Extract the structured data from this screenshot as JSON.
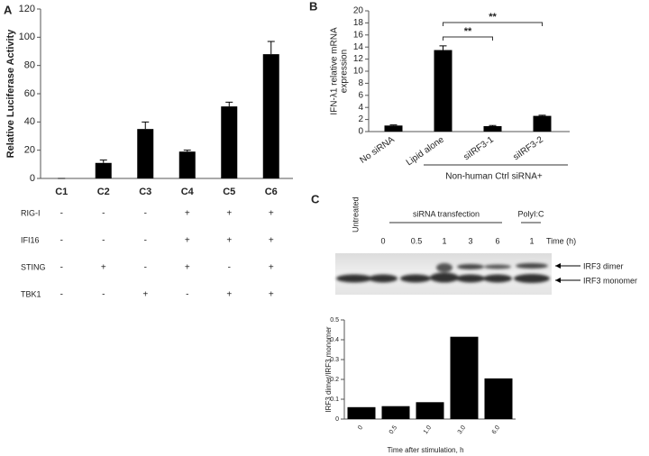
{
  "chart_data": [
    {
      "type": "bar",
      "label": "A",
      "ylabel": "Relative Luciferase Activity",
      "color": "#000000",
      "categories": [
        "C1",
        "C2",
        "C3",
        "C4",
        "C5",
        "C6"
      ],
      "values": [
        0,
        11,
        35,
        19,
        51,
        88
      ],
      "errors": [
        0,
        2,
        5,
        1,
        3,
        9
      ],
      "ylim": [
        0,
        120
      ],
      "yticks": [
        0,
        20,
        40,
        60,
        80,
        100,
        120
      ],
      "conditions": [
        {
          "name": "RIG-I",
          "marks": [
            "-",
            "-",
            "-",
            "+",
            "+",
            "+"
          ]
        },
        {
          "name": "IFI16",
          "marks": [
            "-",
            "-",
            "-",
            "+",
            "+",
            "+"
          ]
        },
        {
          "name": "STING",
          "marks": [
            "-",
            "+",
            "-",
            "+",
            "-",
            "+"
          ]
        },
        {
          "name": "TBK1",
          "marks": [
            "-",
            "-",
            "+",
            "-",
            "+",
            "+"
          ]
        }
      ]
    },
    {
      "type": "bar",
      "label": "B",
      "ylabel": [
        "IFN-λ1 relative mRNA",
        "expression"
      ],
      "color": "#000000",
      "categories": [
        "No siRNA",
        "Lipid alone",
        "siIRF3-1",
        "siIRF3-2"
      ],
      "values": [
        1.0,
        13.5,
        0.9,
        2.6
      ],
      "errors": [
        0.1,
        0.7,
        0.1,
        0.1
      ],
      "ylim": [
        0,
        20
      ],
      "yticks": [
        0,
        2,
        4,
        6,
        8,
        10,
        12,
        14,
        16,
        18,
        20
      ],
      "group_label": "Non-human Ctrl siRNA+",
      "significance": [
        "**",
        "**"
      ]
    },
    {
      "type": "bar",
      "label": "C",
      "ylabel": "IRF3 dimer/IRF3 monomer",
      "xlabel": "Time after stimulation, h",
      "color": "#000000",
      "categories": [
        "0",
        "0.5",
        "1.0",
        "3.0",
        "6.0"
      ],
      "values": [
        0.06,
        0.065,
        0.085,
        0.415,
        0.205
      ],
      "ylim": [
        0,
        0.5
      ],
      "yticks": [
        0,
        0.1,
        0.2,
        0.3,
        0.4,
        0.5
      ],
      "blot": {
        "untreated": "Untreated",
        "transfection": "siRNA transfection",
        "polyic": "PolyI:C",
        "lanes": [
          "0",
          "0.5",
          "1",
          "3",
          "6",
          "1"
        ],
        "time_unit": "Time (h)",
        "dimer": "IRF3 dimer",
        "monomer": "IRF3 monomer"
      }
    }
  ]
}
